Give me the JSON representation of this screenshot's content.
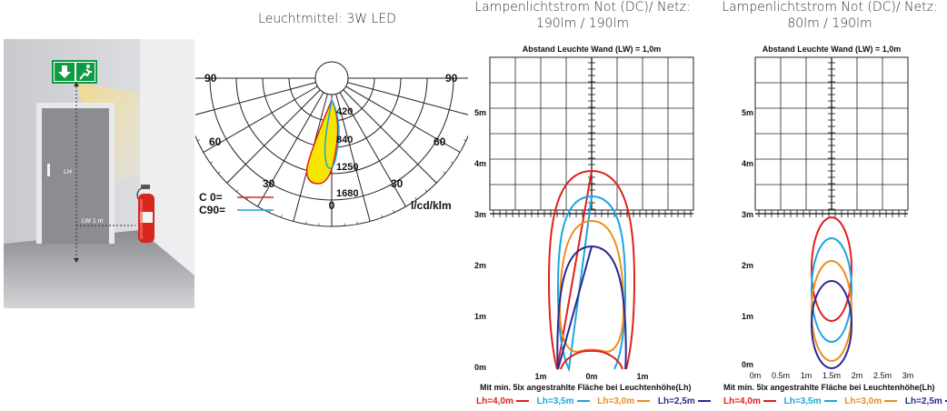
{
  "scene": {
    "height_label": "LH",
    "distance_label": "LW 1 m"
  },
  "polar": {
    "title": "Leuchtmittel: 3W LED",
    "angle_labels": {
      "left_90": "90",
      "right_90": "90",
      "left_60": "60",
      "right_60": "60",
      "left_30": "30",
      "right_30": "30",
      "zero": "0"
    },
    "radial_labels": [
      "420",
      "840",
      "1250",
      "1680"
    ],
    "unit": "l/cd/klm",
    "legend": [
      {
        "label": "C  0=",
        "color": "#e0201c"
      },
      {
        "label": "C90=",
        "color": "#19a6e0"
      }
    ]
  },
  "panels": [
    {
      "title_line1": "Lampenlichtstrom Not (DC)/ Netz:",
      "title_line2": "190lm / 190lm",
      "header": "Abstand Leuchte Wand (LW) = 1,0m",
      "y_ticks": [
        "5m",
        "4m",
        "3m",
        "2m",
        "1m",
        "0m"
      ],
      "x_ticks": [
        "1m",
        "0m",
        "1m"
      ],
      "caption": "Mit min. 5lx angestrahlte Fläche bei Leuchtenhöhe(Lh)",
      "legend": [
        {
          "label": "Lh=4,0m",
          "color": "#e0201c"
        },
        {
          "label": "Lh=3,5m",
          "color": "#19a6e0"
        },
        {
          "label": "Lh=3,0m",
          "color": "#f08a1c"
        },
        {
          "label": "Lh=2,5m",
          "color": "#2b2a8f"
        }
      ]
    },
    {
      "title_line1": "Lampenlichtstrom Not (DC)/ Netz:",
      "title_line2": "80lm / 190lm",
      "header": "Abstand Leuchte Wand (LW) = 1,0m",
      "y_ticks": [
        "5m",
        "4m",
        "3m",
        "2m",
        "1m",
        "0m"
      ],
      "x_ticks": [
        "0m",
        "0.5m",
        "1m",
        "1.5m",
        "2m",
        "2.5m",
        "3m"
      ],
      "caption": "Mit min. 5lx angestrahlte Fläche bei Leuchtenhöhe(Lh)",
      "legend": [
        {
          "label": "Lh=4,0m",
          "color": "#e0201c"
        },
        {
          "label": "Lh=3,5m",
          "color": "#19a6e0"
        },
        {
          "label": "Lh=3,0m",
          "color": "#f08a1c"
        },
        {
          "label": "Lh=2,5m",
          "color": "#2b2a8f"
        }
      ]
    }
  ]
}
